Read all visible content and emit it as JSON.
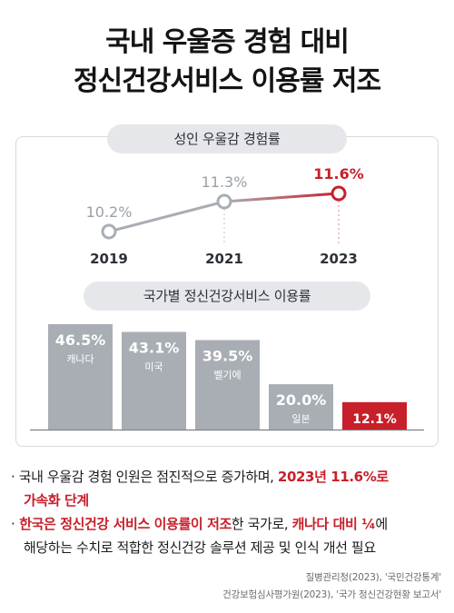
{
  "title": {
    "line1": "국내 우울증 경험 대비",
    "line2": "정신건강서비스 이용률 저조"
  },
  "colors": {
    "accent_red": "#c7202a",
    "gray_bar": "#a9adb4",
    "gray_line": "#a9adb4"
  },
  "chart_data": [
    {
      "type": "line",
      "title": "성인 우울감 경험률",
      "x": [
        "2019",
        "2021",
        "2023"
      ],
      "series": [
        {
          "values": [
            10.2,
            11.3,
            11.6
          ],
          "value_labels": [
            "10.2%",
            "11.3%",
            "11.6%"
          ]
        }
      ],
      "highlight_index": 2,
      "grid": false
    },
    {
      "type": "bar",
      "title": "국가별 정신건강서비스 이용률",
      "categories": [
        "캐나다",
        "미국",
        "벨기에",
        "일본",
        "한국"
      ],
      "values": [
        46.5,
        43.1,
        39.5,
        20.0,
        12.1
      ],
      "value_labels": [
        "46.5%",
        "43.1%",
        "39.5%",
        "20.0%",
        "12.1%"
      ],
      "highlight_index": 4,
      "grid": false
    }
  ],
  "bullets": {
    "b1": {
      "marker": "·",
      "text_a": " 국내 우울감 경험 인원은 점진적으로 증가하며, ",
      "red_a": "2023년 11.6%로",
      "red_b": "가속화 단계"
    },
    "b2": {
      "marker": "·",
      "red_a": " 한국은 정신건강 서비스 이용률이 저조",
      "text_a": "한 국가로, ",
      "red_b": "캐나다 대비 ¼",
      "text_b": "에",
      "text_c": "해당하는 수치로 적합한 정신건강 솔루션 제공 및 인식 개선 필요"
    }
  },
  "sources": {
    "line1": "질병관리청(2023), '국민건강통계'",
    "line2": "건강보험심사평가원(2023), '국가 정신건강현황 보고서'"
  }
}
